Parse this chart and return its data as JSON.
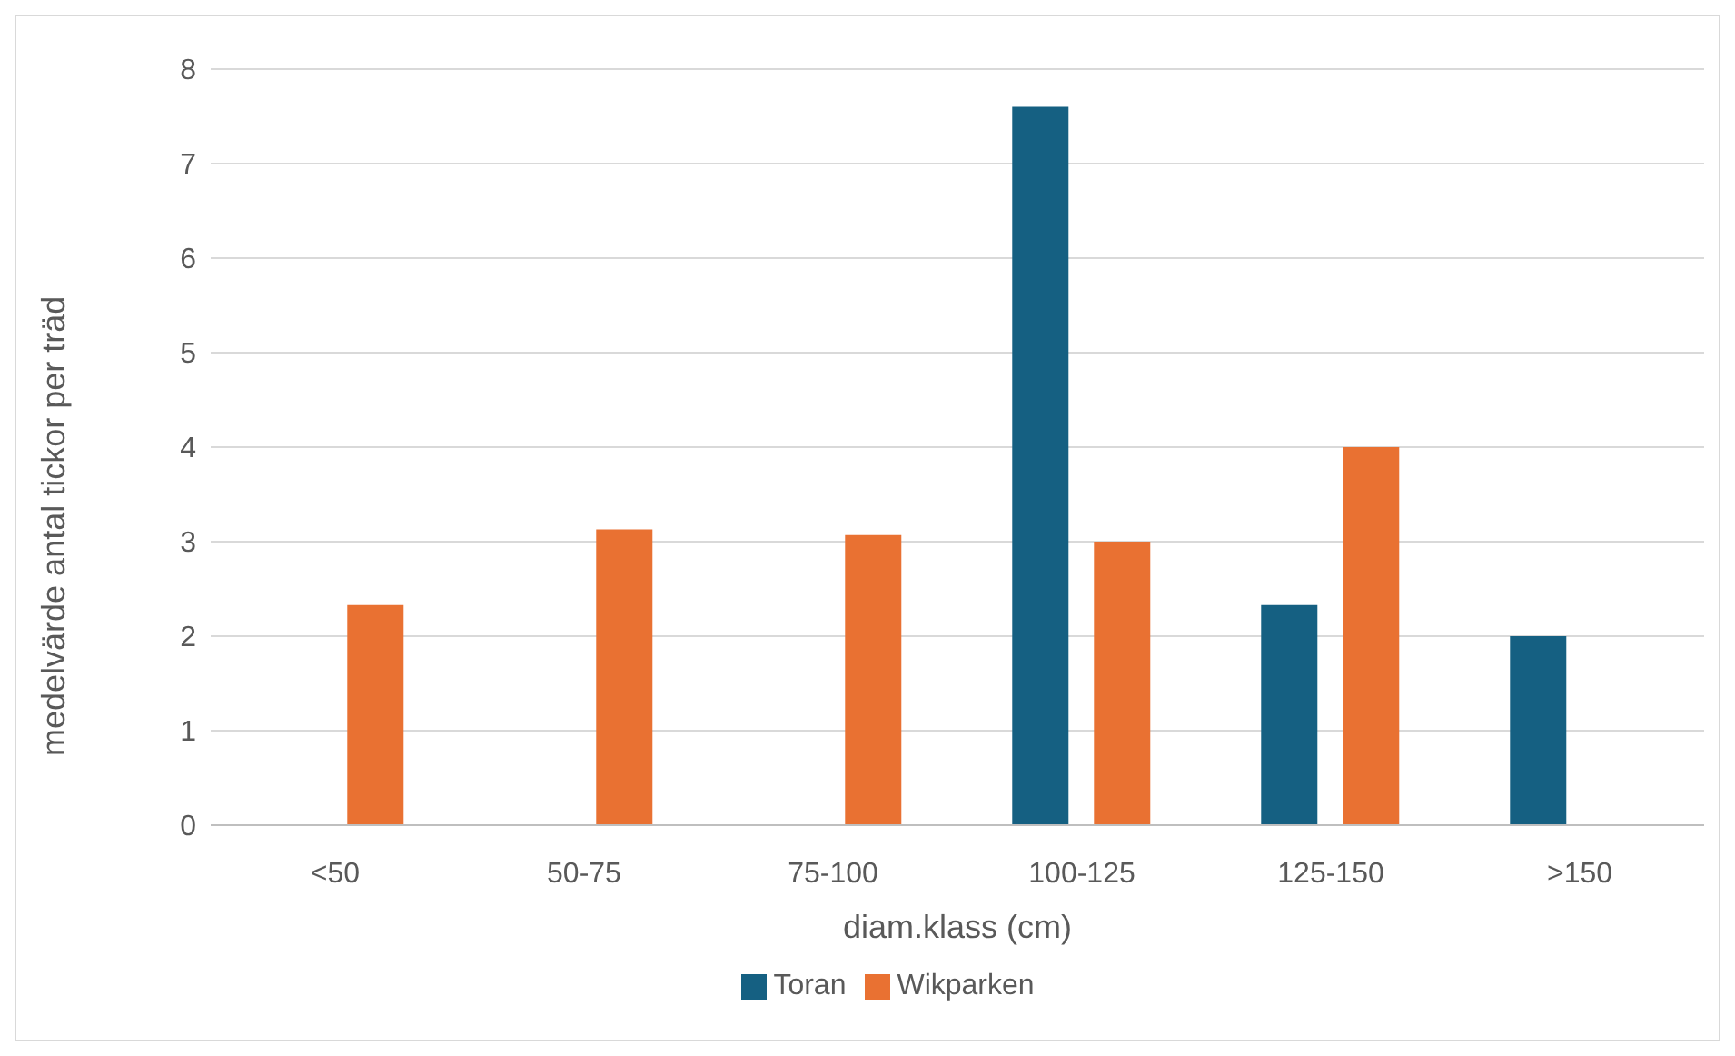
{
  "chart_data": {
    "type": "bar",
    "xlabel": "diam.klass (cm)",
    "ylabel": "medelvärde antal tickor per träd",
    "categories": [
      "<50",
      "50-75",
      "75-100",
      "100-125",
      "125-150",
      ">150"
    ],
    "series": [
      {
        "name": "Toran",
        "color": "#156082",
        "values": [
          null,
          null,
          null,
          7.6,
          2.33,
          2.0
        ]
      },
      {
        "name": "Wikparken",
        "color": "#e97132",
        "values": [
          2.33,
          3.13,
          3.07,
          3.0,
          4.0,
          null
        ]
      }
    ],
    "ylim": [
      0,
      8
    ],
    "yticks": [
      0,
      1,
      2,
      3,
      4,
      5,
      6,
      7,
      8
    ],
    "grid": "y",
    "legend": "bottom"
  }
}
